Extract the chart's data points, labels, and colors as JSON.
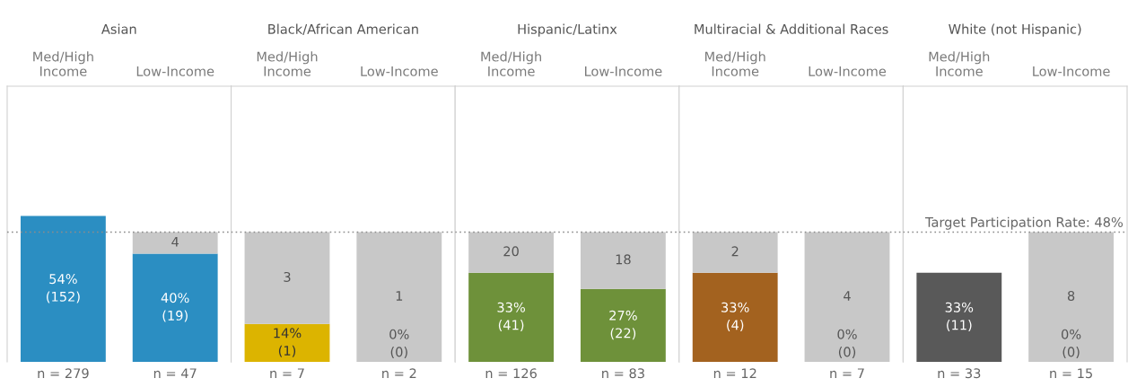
{
  "chart_data": [
    {
      "type": "bar",
      "stacked": true,
      "title": "Asian",
      "categories": [
        "Med/High\nIncome",
        "Low-Income"
      ],
      "ylim": [
        0,
        102
      ],
      "tick_labels": "x",
      "series": [
        {
          "colors": [
            "#2b8ec2",
            "#2b8ec2"
          ],
          "values": [
            54,
            40
          ],
          "value_labels": [
            "54%\n(152)",
            "40%\n(19)"
          ]
        },
        {
          "color": "#c8c8c8",
          "values": [
            null,
            8
          ]
        }
      ],
      "ref_lines": [
        {
          "axis": "y",
          "value": 48,
          "color": "#8c8c8c",
          "line_style": "dotted"
        }
      ],
      "annotations": [
        "4",
        "n = 279",
        "n = 47"
      ]
    },
    {
      "type": "bar",
      "stacked": true,
      "title": "Black/African American",
      "categories": [
        "Med/High\nIncome",
        "Low-Income"
      ],
      "ylim": [
        0,
        102
      ],
      "tick_labels": "x",
      "series": [
        {
          "colors": [
            "#dcb400",
            "#dcb400"
          ],
          "values": [
            14,
            0
          ],
          "value_labels": [
            "14%\n(1)",
            null
          ]
        },
        {
          "color": "#c8c8c8",
          "values": [
            34,
            48
          ]
        }
      ],
      "ref_lines": [
        {
          "axis": "y",
          "value": 48,
          "color": "#8c8c8c",
          "line_style": "dotted"
        }
      ],
      "annotations": [
        "3",
        "1",
        "0%\n(0)",
        "n = 7",
        "n = 2"
      ]
    },
    {
      "type": "bar",
      "stacked": true,
      "title": "Hispanic/Latinx",
      "categories": [
        "Med/High\nIncome",
        "Low-Income"
      ],
      "ylim": [
        0,
        102
      ],
      "tick_labels": "x",
      "series": [
        {
          "colors": [
            "#6e913a",
            "#6e913a"
          ],
          "values": [
            33,
            27
          ],
          "value_labels": [
            "33%\n(41)",
            "27%\n(22)"
          ]
        },
        {
          "color": "#c8c8c8",
          "values": [
            15,
            21
          ]
        }
      ],
      "ref_lines": [
        {
          "axis": "y",
          "value": 48,
          "color": "#8c8c8c",
          "line_style": "dotted"
        }
      ],
      "annotations": [
        "20",
        "18",
        "n = 126",
        "n = 83"
      ]
    },
    {
      "type": "bar",
      "stacked": true,
      "title": "Multiracial & Additional Races",
      "categories": [
        "Med/High\nIncome",
        "Low-Income"
      ],
      "ylim": [
        0,
        102
      ],
      "tick_labels": "x",
      "series": [
        {
          "colors": [
            "#a3621f",
            "#a3621f"
          ],
          "values": [
            33,
            0
          ],
          "value_labels": [
            "33%\n(4)",
            null
          ]
        },
        {
          "color": "#c8c8c8",
          "values": [
            15,
            48
          ]
        }
      ],
      "ref_lines": [
        {
          "axis": "y",
          "value": 48,
          "color": "#8c8c8c",
          "line_style": "dotted"
        }
      ],
      "annotations": [
        "2",
        "4",
        "0%\n(0)",
        "n = 12",
        "n = 7"
      ]
    },
    {
      "type": "bar",
      "stacked": true,
      "title": "White (not Hispanic)",
      "categories": [
        "Med/High\nIncome",
        "Low-Income"
      ],
      "ylim": [
        0,
        102
      ],
      "tick_labels": "x",
      "series": [
        {
          "colors": [
            "#595959",
            "#595959"
          ],
          "values": [
            33,
            0
          ],
          "value_labels": [
            "33%\n(11)",
            null
          ]
        },
        {
          "color": "#c8c8c8",
          "values": [
            null,
            48
          ]
        }
      ],
      "ref_lines": [
        {
          "axis": "y",
          "value": 48,
          "label": "Target Participation Rate: 48%",
          "color": "#8c8c8c",
          "line_style": "dotted"
        }
      ],
      "annotations": [
        "8",
        "0%\n(0)",
        "n = 33",
        "n = 15"
      ]
    }
  ]
}
